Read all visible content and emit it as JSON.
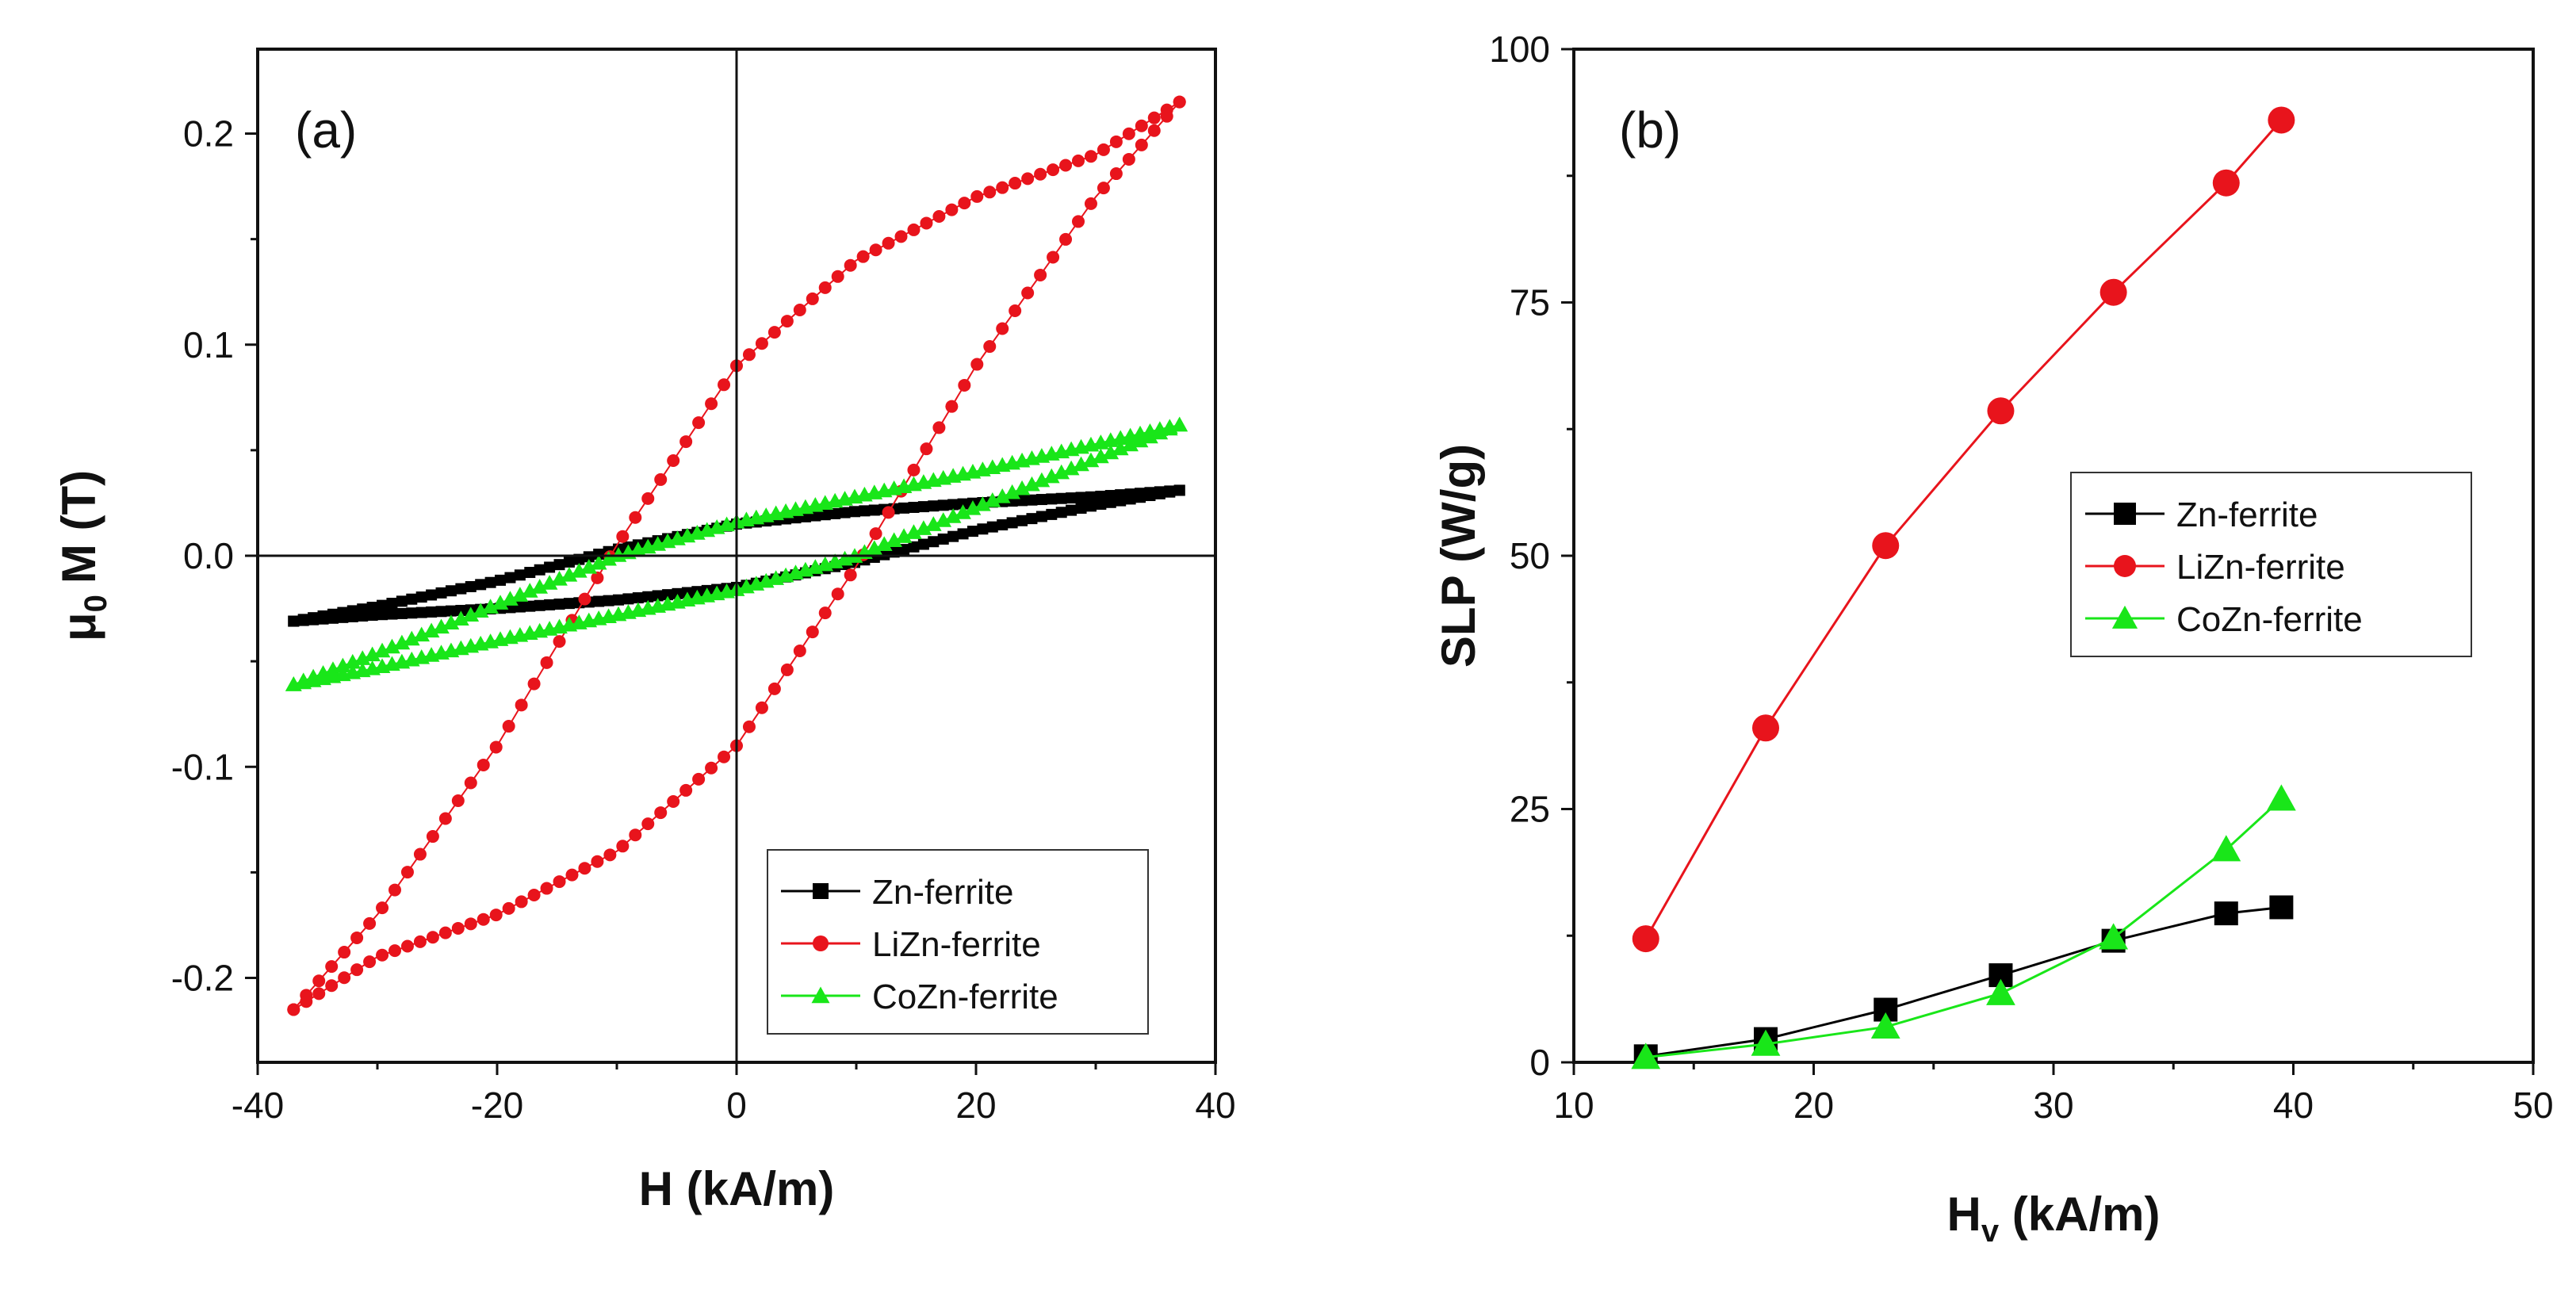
{
  "chart_data": [
    {
      "type": "line",
      "panel_label": "(a)",
      "xlabel": "H (kA/m)",
      "ylabel_prefix": "μ",
      "ylabel_subscript": "0",
      "ylabel_suffix": "M (T)",
      "xlim": [
        -40,
        40
      ],
      "ylim": [
        -0.24,
        0.24
      ],
      "xticks": [
        -40,
        -20,
        0,
        20,
        40
      ],
      "xtick_labels": [
        "-40",
        "-20",
        "0",
        "20",
        "40"
      ],
      "yticks": [
        -0.2,
        -0.1,
        0.0,
        0.1,
        0.2
      ],
      "ytick_labels": [
        "-0.2",
        "-0.1",
        "0.0",
        "0.1",
        "0.2"
      ],
      "legend_position": "bottom-right",
      "series": [
        {
          "name": "Zn-ferrite",
          "marker": "square",
          "color": "#000000",
          "upper_branch": {
            "x": [
              -37,
              -30,
              -20,
              -10,
              0,
              10,
              20,
              30,
              37
            ],
            "y": [
              -0.031,
              -0.024,
              -0.012,
              0.003,
              0.015,
              0.021,
              0.025,
              0.028,
              0.031
            ]
          },
          "lower_branch": {
            "x": [
              -37,
              -30,
              -20,
              -10,
              0,
              10,
              20,
              30,
              37
            ],
            "y": [
              -0.031,
              -0.028,
              -0.025,
              -0.021,
              -0.015,
              -0.003,
              0.012,
              0.024,
              0.031
            ]
          }
        },
        {
          "name": "LiZn-ferrite",
          "marker": "circle",
          "color": "#e8141c",
          "upper_branch": {
            "x": [
              -37,
              -30,
              -20,
              -10,
              0,
              10,
              20,
              30,
              37
            ],
            "y": [
              -0.215,
              -0.17,
              -0.09,
              0.005,
              0.09,
              0.14,
              0.17,
              0.19,
              0.215
            ]
          },
          "lower_branch": {
            "x": [
              -37,
              -30,
              -20,
              -10,
              0,
              10,
              20,
              30,
              37
            ],
            "y": [
              -0.215,
              -0.19,
              -0.17,
              -0.14,
              -0.09,
              -0.005,
              0.09,
              0.17,
              0.215
            ]
          }
        },
        {
          "name": "CoZn-ferrite",
          "marker": "triangle",
          "color": "#19e619",
          "upper_branch": {
            "x": [
              -37,
              -30,
              -20,
              -10,
              0,
              10,
              20,
              30,
              37
            ],
            "y": [
              -0.061,
              -0.046,
              -0.023,
              0.0,
              0.016,
              0.028,
              0.04,
              0.053,
              0.062
            ]
          },
          "lower_branch": {
            "x": [
              -37,
              -30,
              -20,
              -10,
              0,
              10,
              20,
              30,
              37
            ],
            "y": [
              -0.061,
              -0.053,
              -0.04,
              -0.028,
              -0.016,
              0.0,
              0.023,
              0.046,
              0.062
            ]
          }
        }
      ]
    },
    {
      "type": "line",
      "panel_label": "(b)",
      "xlabel_main": "H",
      "xlabel_subscript": "v",
      "xlabel_suffix": " (kA/m)",
      "ylabel": "SLP (W/g)",
      "xlim": [
        10,
        50
      ],
      "ylim": [
        0,
        100
      ],
      "xticks": [
        10,
        20,
        30,
        40,
        50
      ],
      "xtick_labels": [
        "10",
        "20",
        "30",
        "40",
        "50"
      ],
      "yticks": [
        0,
        25,
        50,
        75,
        100
      ],
      "ytick_labels": [
        "0",
        "25",
        "50",
        "75",
        "100"
      ],
      "legend_position": "center-right",
      "series": [
        {
          "name": "Zn-ferrite",
          "marker": "square",
          "color": "#000000",
          "x": [
            13,
            18,
            23,
            27.8,
            32.5,
            37.2,
            39.5
          ],
          "y": [
            0.6,
            2.3,
            5.2,
            8.6,
            12.0,
            14.7,
            15.3
          ]
        },
        {
          "name": "LiZn-ferrite",
          "marker": "circle",
          "color": "#e8141c",
          "x": [
            13,
            18,
            23,
            27.8,
            32.5,
            37.2,
            39.5
          ],
          "y": [
            12.2,
            33,
            51,
            64.3,
            76,
            86.8,
            93
          ]
        },
        {
          "name": "CoZn-ferrite",
          "marker": "triangle",
          "color": "#19e619",
          "x": [
            13,
            18,
            23,
            27.8,
            32.5,
            37.2,
            39.5
          ],
          "y": [
            0.5,
            1.8,
            3.5,
            6.8,
            12.3,
            21,
            26
          ]
        }
      ]
    }
  ]
}
